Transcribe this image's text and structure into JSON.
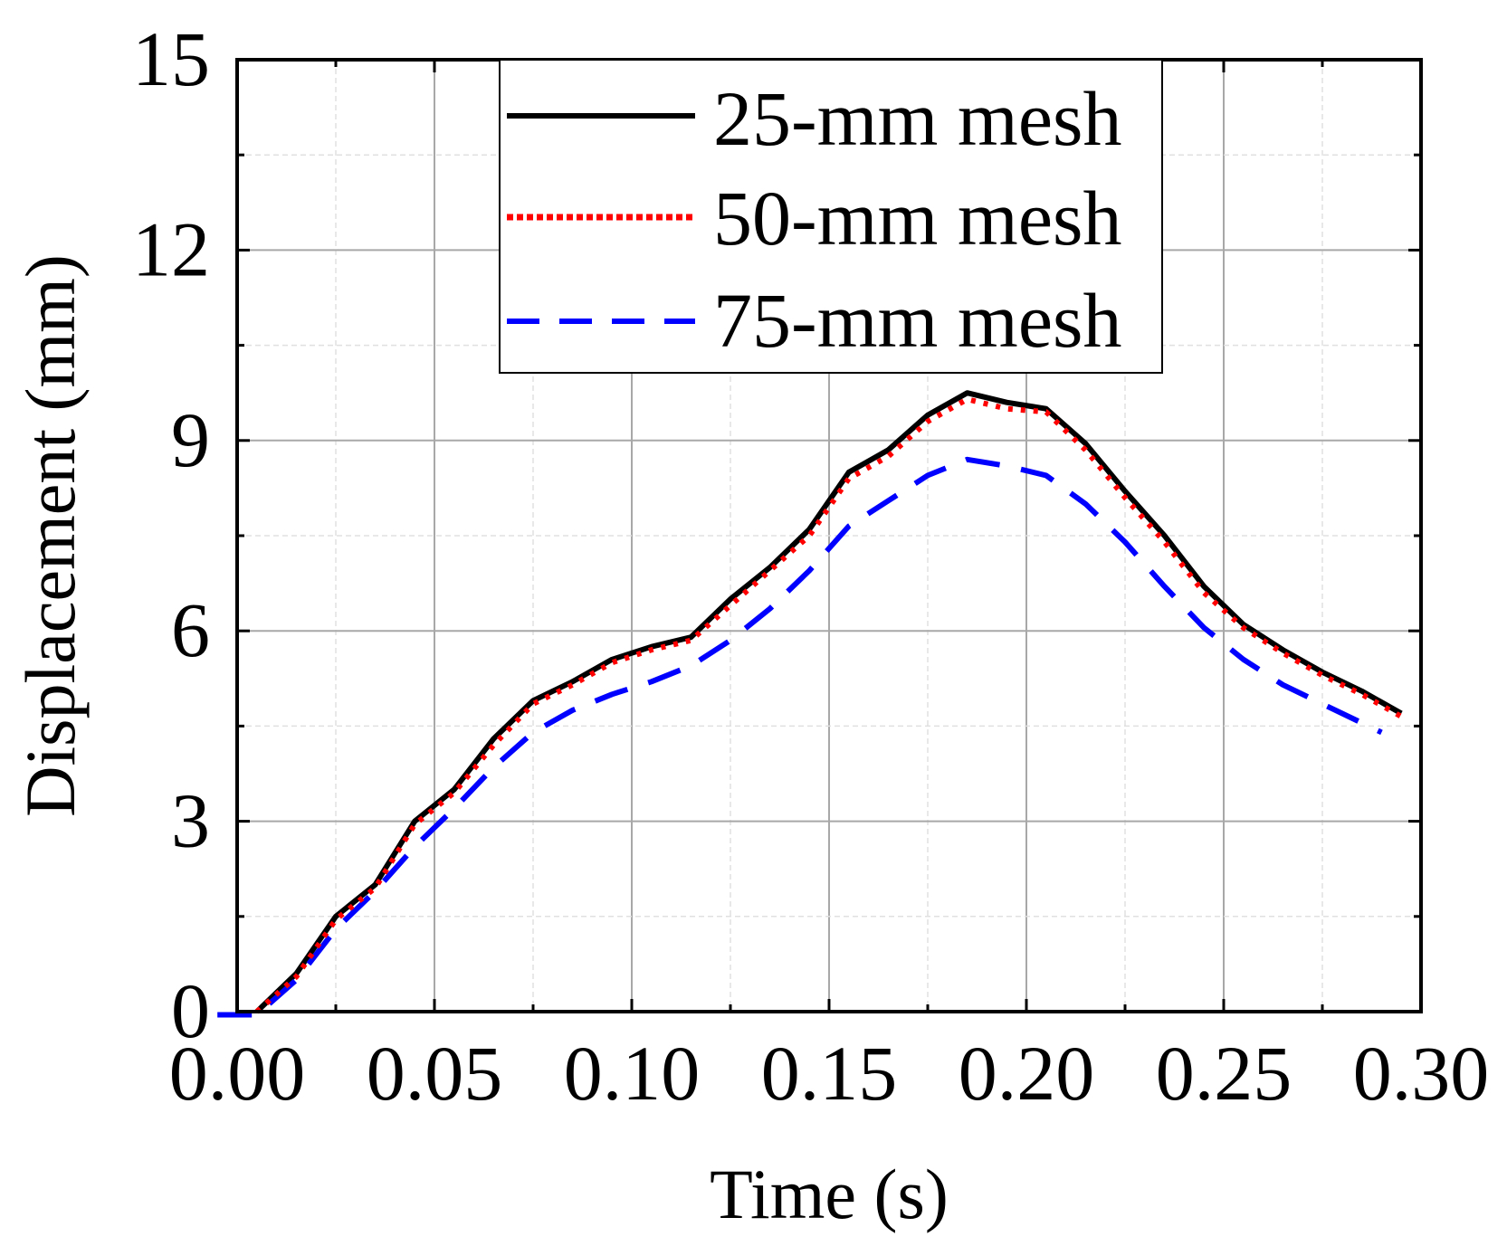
{
  "chart_data": {
    "type": "line",
    "title": "",
    "xlabel": "Time (s)",
    "ylabel": "Displacement (mm)",
    "xlim": [
      0,
      0.3
    ],
    "ylim": [
      0,
      15
    ],
    "x_ticks": [
      0,
      0.05,
      0.1,
      0.15,
      0.2,
      0.25,
      0.3
    ],
    "x_tick_labels": [
      "0.00",
      "0.05",
      "0.10",
      "0.15",
      "0.20",
      "0.25",
      "0.30"
    ],
    "y_ticks": [
      0,
      3,
      6,
      9,
      12,
      15
    ],
    "y_tick_labels": [
      "0",
      "3",
      "6",
      "9",
      "12",
      "15"
    ],
    "grid": true,
    "legend_position": "top-center",
    "series": [
      {
        "name": "25-mm mesh",
        "color": "#000000",
        "style": "solid",
        "x": [
          0.005,
          0.015,
          0.025,
          0.035,
          0.045,
          0.055,
          0.065,
          0.075,
          0.085,
          0.095,
          0.105,
          0.115,
          0.125,
          0.135,
          0.145,
          0.155,
          0.165,
          0.175,
          0.185,
          0.195,
          0.205,
          0.215,
          0.225,
          0.235,
          0.245,
          0.255,
          0.265,
          0.275,
          0.285,
          0.295
        ],
        "y": [
          0.0,
          0.6,
          1.5,
          2.0,
          3.0,
          3.5,
          4.3,
          4.9,
          5.2,
          5.55,
          5.75,
          5.9,
          6.5,
          7.0,
          7.6,
          8.5,
          8.85,
          9.4,
          9.75,
          9.6,
          9.5,
          8.95,
          8.2,
          7.5,
          6.7,
          6.1,
          5.7,
          5.35,
          5.05,
          4.7
        ]
      },
      {
        "name": "50-mm mesh",
        "color": "#ff0000",
        "style": "dotted",
        "x": [
          0.005,
          0.015,
          0.025,
          0.035,
          0.045,
          0.055,
          0.065,
          0.075,
          0.085,
          0.095,
          0.105,
          0.115,
          0.125,
          0.135,
          0.145,
          0.155,
          0.165,
          0.175,
          0.185,
          0.195,
          0.205,
          0.215,
          0.225,
          0.235,
          0.245,
          0.255,
          0.265,
          0.275,
          0.285,
          0.295
        ],
        "y": [
          0.0,
          0.55,
          1.45,
          1.95,
          2.95,
          3.45,
          4.2,
          4.85,
          5.15,
          5.5,
          5.7,
          5.85,
          6.4,
          6.95,
          7.5,
          8.4,
          8.75,
          9.3,
          9.65,
          9.5,
          9.45,
          8.85,
          8.1,
          7.4,
          6.6,
          6.05,
          5.65,
          5.3,
          5.0,
          4.65
        ]
      },
      {
        "name": "75-mm mesh",
        "color": "#0000ff",
        "style": "dashed",
        "x": [
          -0.005,
          0.005,
          0.015,
          0.025,
          0.035,
          0.045,
          0.055,
          0.065,
          0.075,
          0.085,
          0.095,
          0.105,
          0.115,
          0.125,
          0.135,
          0.145,
          0.155,
          0.165,
          0.175,
          0.185,
          0.195,
          0.205,
          0.215,
          0.225,
          0.235,
          0.245,
          0.255,
          0.265,
          0.275,
          0.285,
          0.29
        ],
        "y": [
          -0.05,
          -0.05,
          0.5,
          1.3,
          1.9,
          2.6,
          3.2,
          3.85,
          4.4,
          4.75,
          5.0,
          5.2,
          5.45,
          5.85,
          6.35,
          6.95,
          7.65,
          8.05,
          8.45,
          8.7,
          8.6,
          8.45,
          8.0,
          7.4,
          6.7,
          6.05,
          5.55,
          5.15,
          4.85,
          4.55,
          4.4
        ]
      }
    ]
  }
}
